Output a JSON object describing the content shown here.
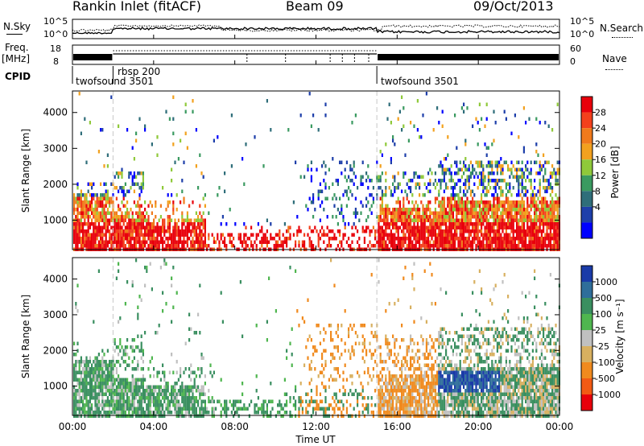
{
  "header": {
    "station": "Rankin Inlet (fitACF)",
    "beam": "Beam 09",
    "date": "09/Oct/2013"
  },
  "strip_panels": {
    "nsky": {
      "label": "N.Sky",
      "ticks": [
        "10^5",
        "10^0"
      ],
      "right_ticks": [
        "10^5",
        "10^0"
      ],
      "right_label": "N.Search"
    },
    "freq": {
      "label_top": "Freq.",
      "label_unit": "[MHz]",
      "ticks": [
        "18",
        "8"
      ],
      "right_ticks": [
        "60",
        "0"
      ],
      "right_label": "Nave"
    },
    "cpid": {
      "label": "CPID",
      "programs": [
        {
          "name": "twofsound 3501",
          "start_hour": 0,
          "end_hour": 2
        },
        {
          "name": "rbsp 200",
          "start_hour": 2,
          "end_hour": 15
        },
        {
          "name": "twofsound 3501",
          "start_hour": 15,
          "end_hour": 24
        }
      ]
    }
  },
  "chart_data": [
    {
      "type": "heatmap",
      "name": "power-panel",
      "ylabel": "Slant Range [km]",
      "xlim": [
        0,
        24
      ],
      "ylim": [
        180,
        4600
      ],
      "yticks": [
        1000,
        2000,
        3000,
        4000
      ],
      "colorbar": {
        "label": "Power [dB]",
        "labels": [
          "28",
          "24",
          "20",
          "16",
          "12",
          "8",
          "4"
        ],
        "colors": [
          "#e8000b",
          "#f3401c",
          "#f07a1c",
          "#f2a11f",
          "#8fc93a",
          "#3a9a60",
          "#2f6e7a",
          "#1e3faa",
          "#0000ff"
        ]
      }
    },
    {
      "type": "heatmap",
      "name": "velocity-panel",
      "ylabel": "Slant Range [km]",
      "xlabel": "Time UT",
      "xlim": [
        0,
        24
      ],
      "ylim": [
        180,
        4600
      ],
      "yticks": [
        1000,
        2000,
        3000,
        4000
      ],
      "xticks": [
        "00:00",
        "04:00",
        "08:00",
        "12:00",
        "16:00",
        "20:00",
        "00:00"
      ],
      "colorbar": {
        "label": "Velocity [m s⁻¹]",
        "labels": [
          "1000",
          "500",
          "100",
          "25",
          "-25",
          "-100",
          "-500",
          "-1000"
        ],
        "colors": [
          "#1a3ba8",
          "#2f6e9a",
          "#3a8f60",
          "#4fb64f",
          "#c0c0c0",
          "#d8b060",
          "#f08a1e",
          "#f25a14",
          "#e8000b"
        ]
      }
    }
  ]
}
